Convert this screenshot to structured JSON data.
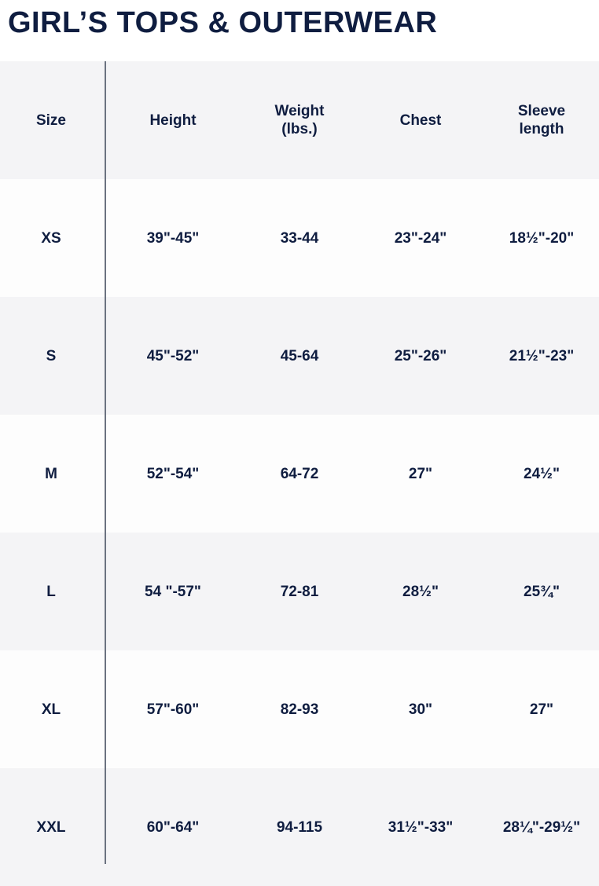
{
  "title": "GIRL’S TOPS & OUTERWEAR",
  "table": {
    "header": [
      "Size",
      "Height",
      "Weight\n(lbs.)",
      "Chest",
      "Sleeve\nlength"
    ],
    "rows": [
      [
        "XS",
        "39\"-45\"",
        "33-44",
        "23\"-24\"",
        "18½\"-20\""
      ],
      [
        "S",
        "45\"-52\"",
        "45-64",
        "25\"-26\"",
        "21½\"-23\""
      ],
      [
        "M",
        "52\"-54\"",
        "64-72",
        "27\"",
        "24½\""
      ],
      [
        "L",
        "54 \"-57\"",
        "72-81",
        "28½\"",
        "25¾\""
      ],
      [
        "XL",
        "57\"-60\"",
        "82-93",
        "30\"",
        "27\""
      ],
      [
        "XXL",
        "60\"-64\"",
        "94-115",
        "31½\"-33\"",
        "28¼\"-29½\""
      ]
    ]
  }
}
